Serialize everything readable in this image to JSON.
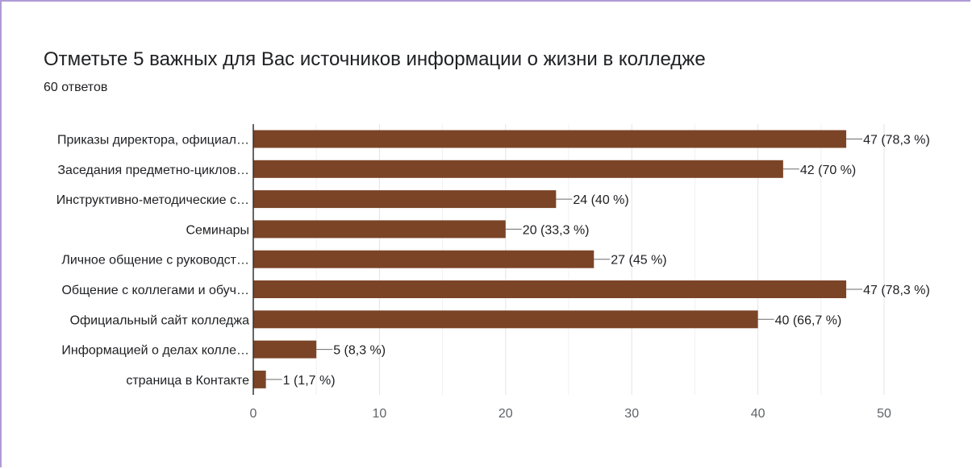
{
  "header": {
    "title": "Отметьте 5 важных для Вас источников информации о жизни в колледже",
    "subtitle": "60 ответов"
  },
  "chart_data": {
    "type": "bar",
    "orientation": "horizontal",
    "title": "Отметьте 5 важных для Вас источников информации о жизни в колледже",
    "xlim": [
      0,
      50
    ],
    "ticks": [
      0,
      10,
      20,
      30,
      40,
      50
    ],
    "grid": true,
    "bar_color": "#7b4427",
    "categories": [
      "Приказы директора, официал…",
      "Заседания предметно-циклов…",
      "Инструктивно-методические с…",
      "Семинары",
      "Личное общение с руководст…",
      "Общение с коллегами и обуч…",
      "Официальный сайт колледжа",
      "Информацией о делах колле…",
      "страница в Контакте"
    ],
    "values": [
      47,
      42,
      24,
      20,
      27,
      47,
      40,
      5,
      1
    ],
    "data_labels": [
      "47 (78,3 %)",
      "42 (70 %)",
      "24 (40 %)",
      "20 (33,3 %)",
      "27 (45 %)",
      "47 (78,3 %)",
      "40 (66,7 %)",
      "5 (8,3 %)",
      "1 (1,7 %)"
    ]
  }
}
